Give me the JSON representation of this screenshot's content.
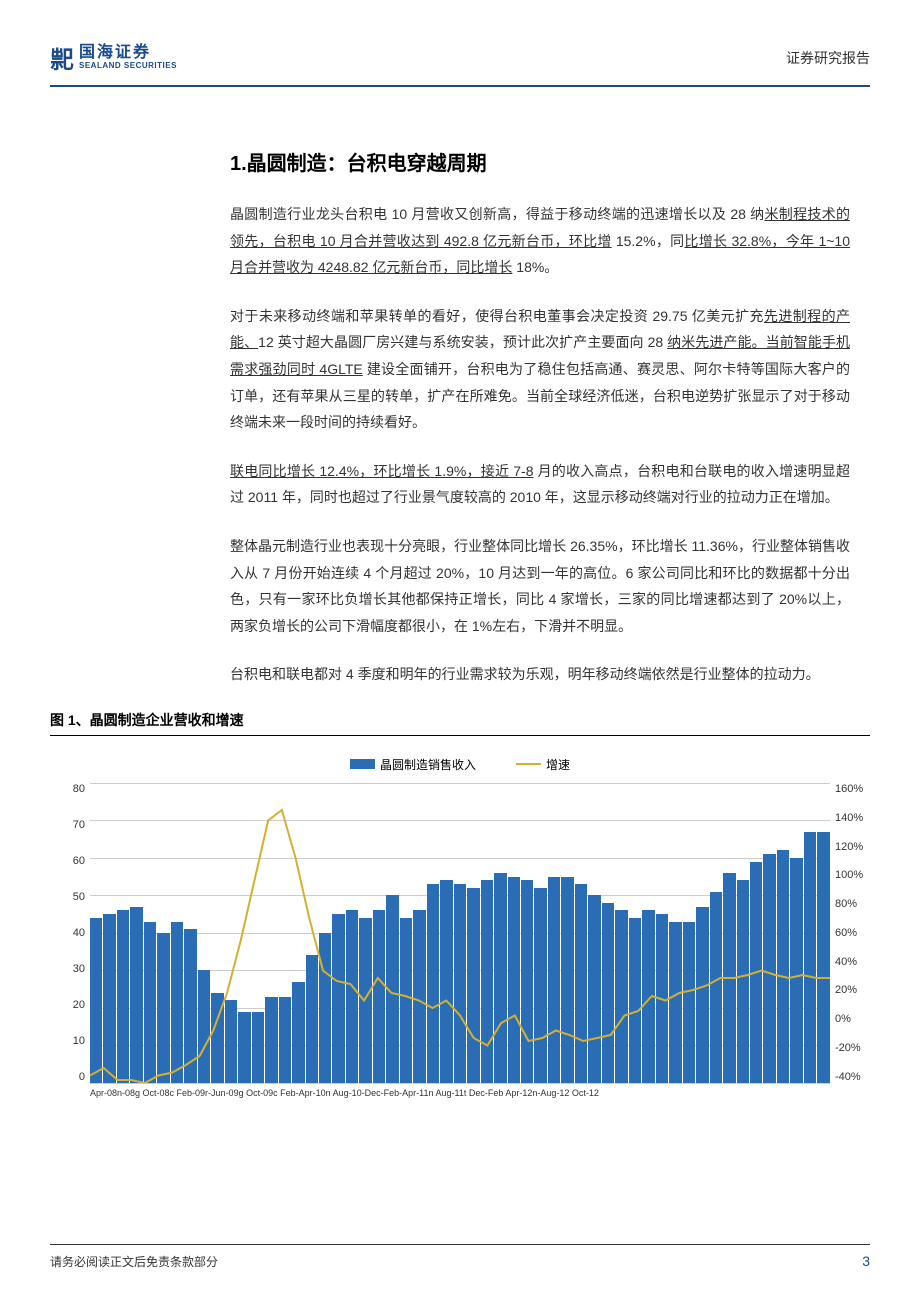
{
  "header": {
    "logo_cn": "国海证券",
    "logo_en": "SEALAND SECURITIES",
    "report_type": "证券研究报告"
  },
  "section_title": "1.晶圆制造：台积电穿越周期",
  "paragraphs": {
    "p1_pre": "晶圆制造行业龙头台积电 10 月营收又创新高，得益于移动终端的迅速增长以及 28 纳",
    "p1_u1": "米制程技术的领先，台积电 10 月合并营收达到 492.8 亿元新台币，环比增",
    "p1_mid": " 15.2%，同",
    "p1_u2": "比增长 32.8%，今年 1~10 月合并营收为 4248.82 亿元新台币，同比增长",
    "p1_post": " 18%。",
    "p2_pre": "对于未来移动终端和苹果转单的看好，使得台积电董事会决定投资 29.75 亿美元扩充",
    "p2_u1": "先进制程的产能、",
    "p2_mid1": "12 英寸超大晶圆厂房兴建与系统安装，预计此次扩产主要面向 28 ",
    "p2_u2": "纳米先进产能。当前智能手机需求强劲同时 4GLTE",
    "p2_post": " 建设全面铺开，台积电为了稳住包括高通、赛灵思、阿尔卡特等国际大客户的订单，还有苹果从三星的转单，扩产在所难免。当前全球经济低迷，台积电逆势扩张显示了对于移动终端未来一段时间的持续看好。",
    "p3_u1": "联电同比增长 12.4%，环比增长 1.9%，接近 7-8",
    "p3_post": " 月的收入高点，台积电和台联电的收入增速明显超过 2011 年，同时也超过了行业景气度较高的 2010 年，这显示移动终端对行业的拉动力正在增加。",
    "p4": "整体晶元制造行业也表现十分亮眼，行业整体同比增长 26.35%，环比增长 11.36%，行业整体销售收入从 7 月份开始连续 4 个月超过 20%，10 月达到一年的高位。6 家公司同比和环比的数据都十分出色，只有一家环比负增长其他都保持正增长，同比 4 家增长，三家的同比增速都达到了 20%以上，两家负增长的公司下滑幅度都很小，在 1%左右，下滑并不明显。",
    "p5": "台积电和联电都对 4 季度和明年的行业需求较为乐观，明年移动终端依然是行业整体的拉动力。"
  },
  "chart": {
    "title": "图 1、晶圆制造企业营收和增速",
    "legend_bar_label": "晶圆制造销售收入",
    "legend_line_label": "增速",
    "bar_color": "#2a6db5",
    "line_color": "#d4b030",
    "grid_color": "#cccccc",
    "y_left_ticks": [
      "80",
      "70",
      "60",
      "50",
      "40",
      "30",
      "20",
      "10",
      "0"
    ],
    "y_left_max": 80,
    "y_right_ticks": [
      "160%",
      "140%",
      "120%",
      "100%",
      "80%",
      "60%",
      "40%",
      "20%",
      "0%",
      "-20%",
      "-40%"
    ],
    "y_right_max": 160,
    "y_right_min": -40,
    "bar_values": [
      44,
      45,
      46,
      47,
      43,
      40,
      43,
      41,
      30,
      24,
      22,
      19,
      19,
      23,
      23,
      27,
      34,
      40,
      45,
      46,
      44,
      46,
      50,
      44,
      46,
      53,
      54,
      53,
      52,
      54,
      56,
      55,
      54,
      52,
      55,
      55,
      53,
      50,
      48,
      46,
      44,
      46,
      45,
      43,
      43,
      47,
      51,
      56,
      54,
      59,
      61,
      62,
      60,
      67,
      67
    ],
    "line_values": [
      -35,
      -30,
      -38,
      -38,
      -40,
      -35,
      -33,
      -28,
      -22,
      -5,
      20,
      55,
      95,
      135,
      142,
      110,
      70,
      35,
      28,
      26,
      15,
      30,
      20,
      18,
      15,
      10,
      15,
      5,
      -10,
      -15,
      0,
      5,
      -12,
      -10,
      -5,
      -8,
      -12,
      -10,
      -8,
      5,
      8,
      18,
      15,
      20,
      22,
      25,
      30,
      30,
      32,
      35,
      32,
      30,
      32,
      30,
      30
    ],
    "x_labels": "Apr-08n-08g Oct-08c Feb-09r-Jun-09g Oct-09c Feb-Apr-10n Aug-10-Dec-Feb-Apr-11n Aug-11t Dec-Feb Apr-12n-Aug-12 Oct-12"
  },
  "footer": {
    "disclaimer": "请务必阅读正文后免责条款部分",
    "page_number": "3"
  }
}
